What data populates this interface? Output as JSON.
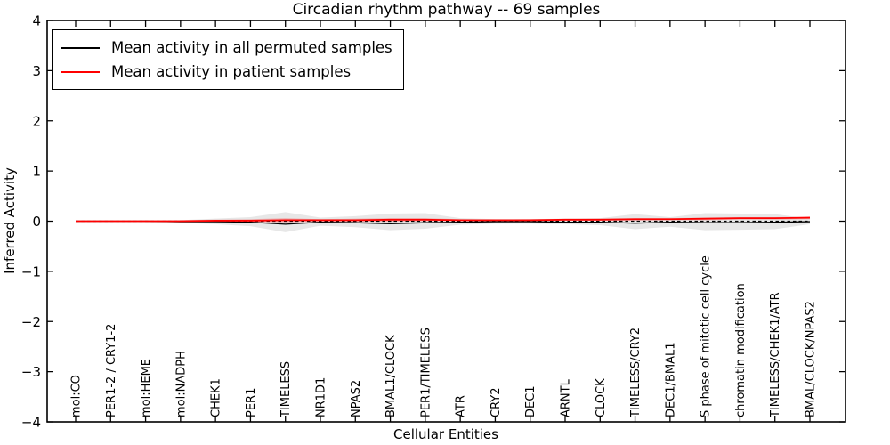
{
  "title": "Circadian rhythm pathway -- 69 samples",
  "axes": {
    "xlabel": "Cellular Entities",
    "ylabel": "Inferred Activity",
    "y_ticks": [
      4,
      3,
      2,
      1,
      0,
      -1,
      -2,
      -3,
      -4
    ],
    "ylim": [
      -4,
      4
    ]
  },
  "legend": {
    "items": [
      {
        "label": "Mean activity in all permuted samples",
        "color": "#000000"
      },
      {
        "label": "Mean activity in patient samples",
        "color": "#ff0000"
      }
    ]
  },
  "chart_data": {
    "type": "line",
    "title": "Circadian rhythm pathway -- 69 samples",
    "xlabel": "Cellular Entities",
    "ylabel": "Inferred Activity",
    "ylim": [
      -4,
      4
    ],
    "grid": false,
    "legend_position": "upper left",
    "categories": [
      "mol:CO",
      "PER1-2 / CRY1-2",
      "mol:HEME",
      "mol:NADPH",
      "CHEK1",
      "PER1",
      "TIMELESS",
      "NR1D1",
      "NPAS2",
      "BMAL1/CLOCK",
      "PER1/TIMELESS",
      "ATR",
      "CRY2",
      "DEC1",
      "ARNTL",
      "CLOCK",
      "TIMELESS/CRY2",
      "DEC1/BMAL1",
      "S phase of mitotic cell cycle",
      "chromatin modification",
      "TIMELESS/CHEK1/ATR",
      "BMAL/CLOCK/NPAS2"
    ],
    "series": [
      {
        "name": "Mean activity in all permuted samples",
        "color": "#000000",
        "style": "solid",
        "values": [
          0.0,
          0.0,
          0.0,
          -0.01,
          -0.01,
          -0.02,
          -0.06,
          -0.02,
          -0.03,
          -0.05,
          -0.03,
          -0.02,
          -0.01,
          -0.01,
          -0.02,
          -0.02,
          -0.04,
          -0.02,
          -0.03,
          -0.03,
          -0.02,
          -0.01
        ]
      },
      {
        "name": "Mean activity in patient samples",
        "color": "#ff0000",
        "style": "solid",
        "values": [
          0.0,
          0.0,
          0.0,
          0.0,
          0.01,
          0.01,
          0.02,
          0.02,
          0.02,
          0.03,
          0.03,
          0.02,
          0.02,
          0.02,
          0.03,
          0.03,
          0.04,
          0.04,
          0.05,
          0.06,
          0.06,
          0.07
        ]
      },
      {
        "name": "Zero reference",
        "color": "#000000",
        "style": "dashed",
        "values": [
          0,
          0,
          0,
          0,
          0,
          0,
          0,
          0,
          0,
          0,
          0,
          0,
          0,
          0,
          0,
          0,
          0,
          0,
          0,
          0,
          0,
          0
        ]
      }
    ],
    "bands": [
      {
        "name": "Permuted samples spread",
        "color": "rgba(120,120,120,0.18)",
        "upper": [
          0.01,
          0.01,
          0.02,
          0.02,
          0.05,
          0.08,
          0.18,
          0.07,
          0.1,
          0.15,
          0.16,
          0.06,
          0.04,
          0.04,
          0.05,
          0.06,
          0.14,
          0.08,
          0.16,
          0.15,
          0.14,
          0.05
        ],
        "lower": [
          -0.01,
          -0.01,
          -0.02,
          -0.03,
          -0.06,
          -0.1,
          -0.22,
          -0.09,
          -0.12,
          -0.18,
          -0.15,
          -0.07,
          -0.05,
          -0.05,
          -0.06,
          -0.08,
          -0.16,
          -0.11,
          -0.18,
          -0.17,
          -0.16,
          -0.06
        ]
      },
      {
        "name": "Patient samples spread",
        "color": "rgba(255,0,0,0.22)",
        "upper": [
          0.01,
          0.01,
          0.01,
          0.02,
          0.03,
          0.04,
          0.06,
          0.04,
          0.05,
          0.06,
          0.06,
          0.04,
          0.03,
          0.04,
          0.04,
          0.05,
          0.06,
          0.06,
          0.07,
          0.08,
          0.08,
          0.09
        ],
        "lower": [
          -0.01,
          -0.01,
          -0.01,
          -0.01,
          -0.02,
          -0.02,
          -0.02,
          -0.01,
          -0.01,
          -0.01,
          0.0,
          0.0,
          0.0,
          0.0,
          0.01,
          0.01,
          0.01,
          0.02,
          0.02,
          0.03,
          0.03,
          0.04
        ]
      }
    ]
  }
}
